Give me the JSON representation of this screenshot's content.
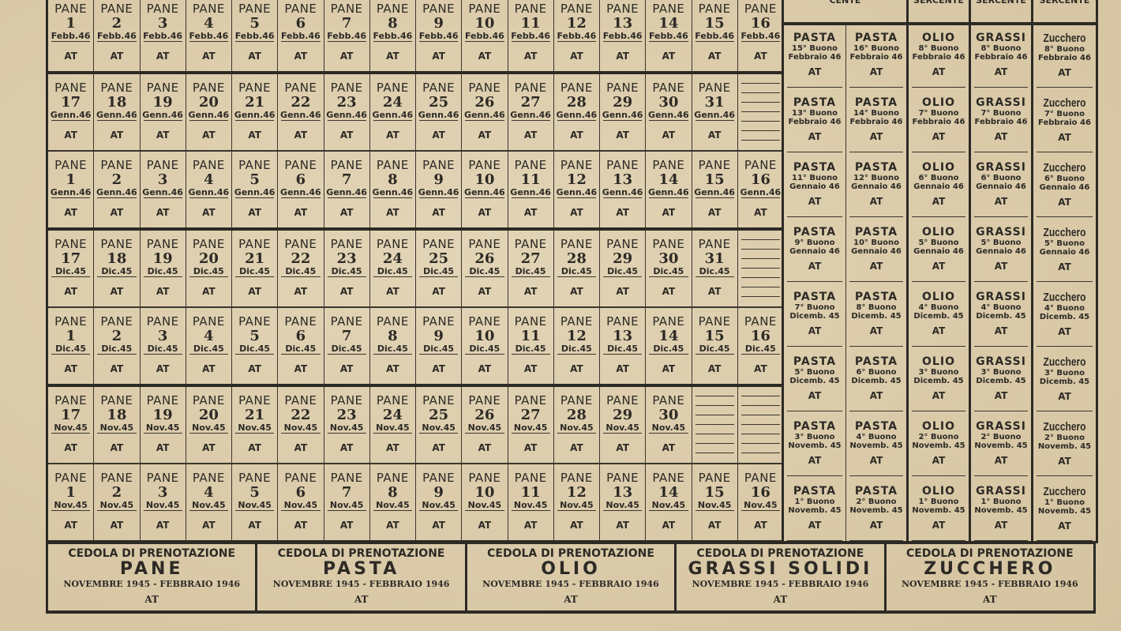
{
  "pane": {
    "label": "PANE",
    "stamp": "AT",
    "rows": [
      {
        "month": "Febb.46",
        "days": [
          "1",
          "2",
          "3",
          "4",
          "5",
          "6",
          "7",
          "8",
          "9",
          "10",
          "11",
          "12",
          "13",
          "14",
          "15",
          "16"
        ]
      },
      {
        "month": "Genn.46",
        "days": [
          "17",
          "18",
          "19",
          "20",
          "21",
          "22",
          "23",
          "24",
          "25",
          "26",
          "27",
          "28",
          "29",
          "30",
          "31"
        ]
      },
      {
        "month": "Genn.46",
        "days": [
          "1",
          "2",
          "3",
          "4",
          "5",
          "6",
          "7",
          "8",
          "9",
          "10",
          "11",
          "12",
          "13",
          "14",
          "15",
          "16"
        ]
      },
      {
        "month": "Dic.45",
        "days": [
          "17",
          "18",
          "19",
          "20",
          "21",
          "22",
          "23",
          "24",
          "25",
          "26",
          "27",
          "28",
          "29",
          "30",
          "31"
        ]
      },
      {
        "month": "Dic.45",
        "days": [
          "1",
          "2",
          "3",
          "4",
          "5",
          "6",
          "7",
          "8",
          "9",
          "10",
          "11",
          "12",
          "13",
          "14",
          "15",
          "16"
        ]
      },
      {
        "month": "Nov.45",
        "days": [
          "17",
          "18",
          "19",
          "20",
          "21",
          "22",
          "23",
          "24",
          "25",
          "26",
          "27",
          "28",
          "29",
          "30"
        ]
      },
      {
        "month": "Nov.45",
        "days": [
          "1",
          "2",
          "3",
          "4",
          "5",
          "6",
          "7",
          "8",
          "9",
          "10",
          "11",
          "12",
          "13",
          "14",
          "15",
          "16"
        ]
      }
    ]
  },
  "others": {
    "header": [
      "CENTE",
      "SERCENTE",
      "SERCENTE",
      "SERCENTE"
    ],
    "labels": [
      "PASTA",
      "PASTA",
      "OLIO",
      "GRASSI",
      "Zucchero"
    ],
    "stamp": "AT",
    "rows": [
      {
        "buoni": [
          "15° Buono",
          "16° Buono",
          "8° Buono",
          "8° Buono",
          "8° Buono"
        ],
        "month": "Febbraio 46"
      },
      {
        "buoni": [
          "13° Buono",
          "14° Buono",
          "7° Buono",
          "7° Buono",
          "7° Buono"
        ],
        "month": "Febbraio 46"
      },
      {
        "buoni": [
          "11° Buono",
          "12° Buono",
          "6° Buono",
          "6° Buono",
          "6° Buono"
        ],
        "month": "Gennaio 46"
      },
      {
        "buoni": [
          "9° Buono",
          "10° Buono",
          "5° Buono",
          "5° Buono",
          "5° Buono"
        ],
        "month": "Gennaio 46"
      },
      {
        "buoni": [
          "7° Buono",
          "8° Buono",
          "4° Buono",
          "4° Buono",
          "4° Buono"
        ],
        "month": "Dicemb. 45"
      },
      {
        "buoni": [
          "5° Buono",
          "6° Buono",
          "3° Buono",
          "3° Buono",
          "3° Buono"
        ],
        "month": "Dicemb. 45"
      },
      {
        "buoni": [
          "3° Buono",
          "4° Buono",
          "2° Buono",
          "2° Buono",
          "2° Buono"
        ],
        "month": "Novemb. 45"
      },
      {
        "buoni": [
          "1° Buono",
          "2° Buono",
          "1° Buono",
          "1° Buono",
          "1° Buono"
        ],
        "month": "Novemb. 45"
      }
    ]
  },
  "cedole": {
    "heading": "CEDOLA DI PRENOTAZIONE",
    "period": "NOVEMBRE 1945 - FEBBRAIO 1946",
    "stamp": "AT",
    "products": [
      "PANE",
      "PASTA",
      "OLIO",
      "GRASSI SOLIDI",
      "ZUCCHERO"
    ]
  },
  "colors": {
    "paper": "#dccdaf",
    "ink": "#2d2a25"
  }
}
